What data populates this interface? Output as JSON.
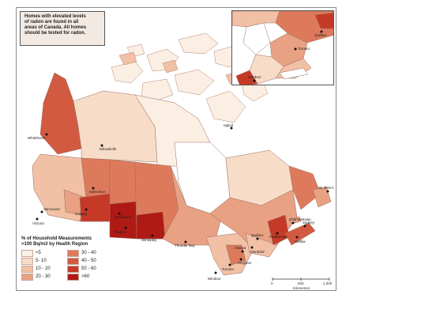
{
  "note": {
    "lines": [
      "Homes with elevated levels",
      "of radon are found in all",
      "areas of Canada. All homes",
      "should be tested for radon."
    ]
  },
  "legend": {
    "title_lines": [
      "% of Household Measurements",
      ">100 Bq/m3 by Health Region"
    ],
    "items": [
      {
        "label": "<5",
        "color": "#fbeee2"
      },
      {
        "label": "30 - 40",
        "color": "#de7a5c"
      },
      {
        "label": "5- 10",
        "color": "#f7dcc8"
      },
      {
        "label": "40 - 50",
        "color": "#d25a40"
      },
      {
        "label": "10 - 20",
        "color": "#f1c0a5"
      },
      {
        "label": "50 - 60",
        "color": "#c43a27"
      },
      {
        "label": "20 - 30",
        "color": "#e8a183"
      },
      {
        "label": ">60",
        "color": "#b01a14"
      }
    ]
  },
  "scale": {
    "ticks": [
      "0",
      "500",
      "1,000"
    ],
    "unit": "Kilometres"
  },
  "cities": {
    "yellowknife": "Yellowknife",
    "whitehorse": "Whitehorse",
    "edmonton": "Edmonton",
    "calgary": "Calgary",
    "vancouver": "Vancouver",
    "victoria": "Victoria",
    "saskatoon": "Saskatoon",
    "regina": "Regina",
    "winnipeg": "Winnipeg",
    "thunder_bay": "Thunder Bay",
    "toronto": "Toronto",
    "ottawa": "Ottawa",
    "montreal": "Montréal",
    "quebec": "Québec",
    "fredericton": "Fredericton",
    "halifax": "Halifax",
    "charlottetown": "Charlottetown",
    "sydney": "Sydney",
    "st_johns": "St. John's",
    "windsor": "Windsor",
    "kingston": "Kingston",
    "iqaluit": "Iqaluit"
  }
}
